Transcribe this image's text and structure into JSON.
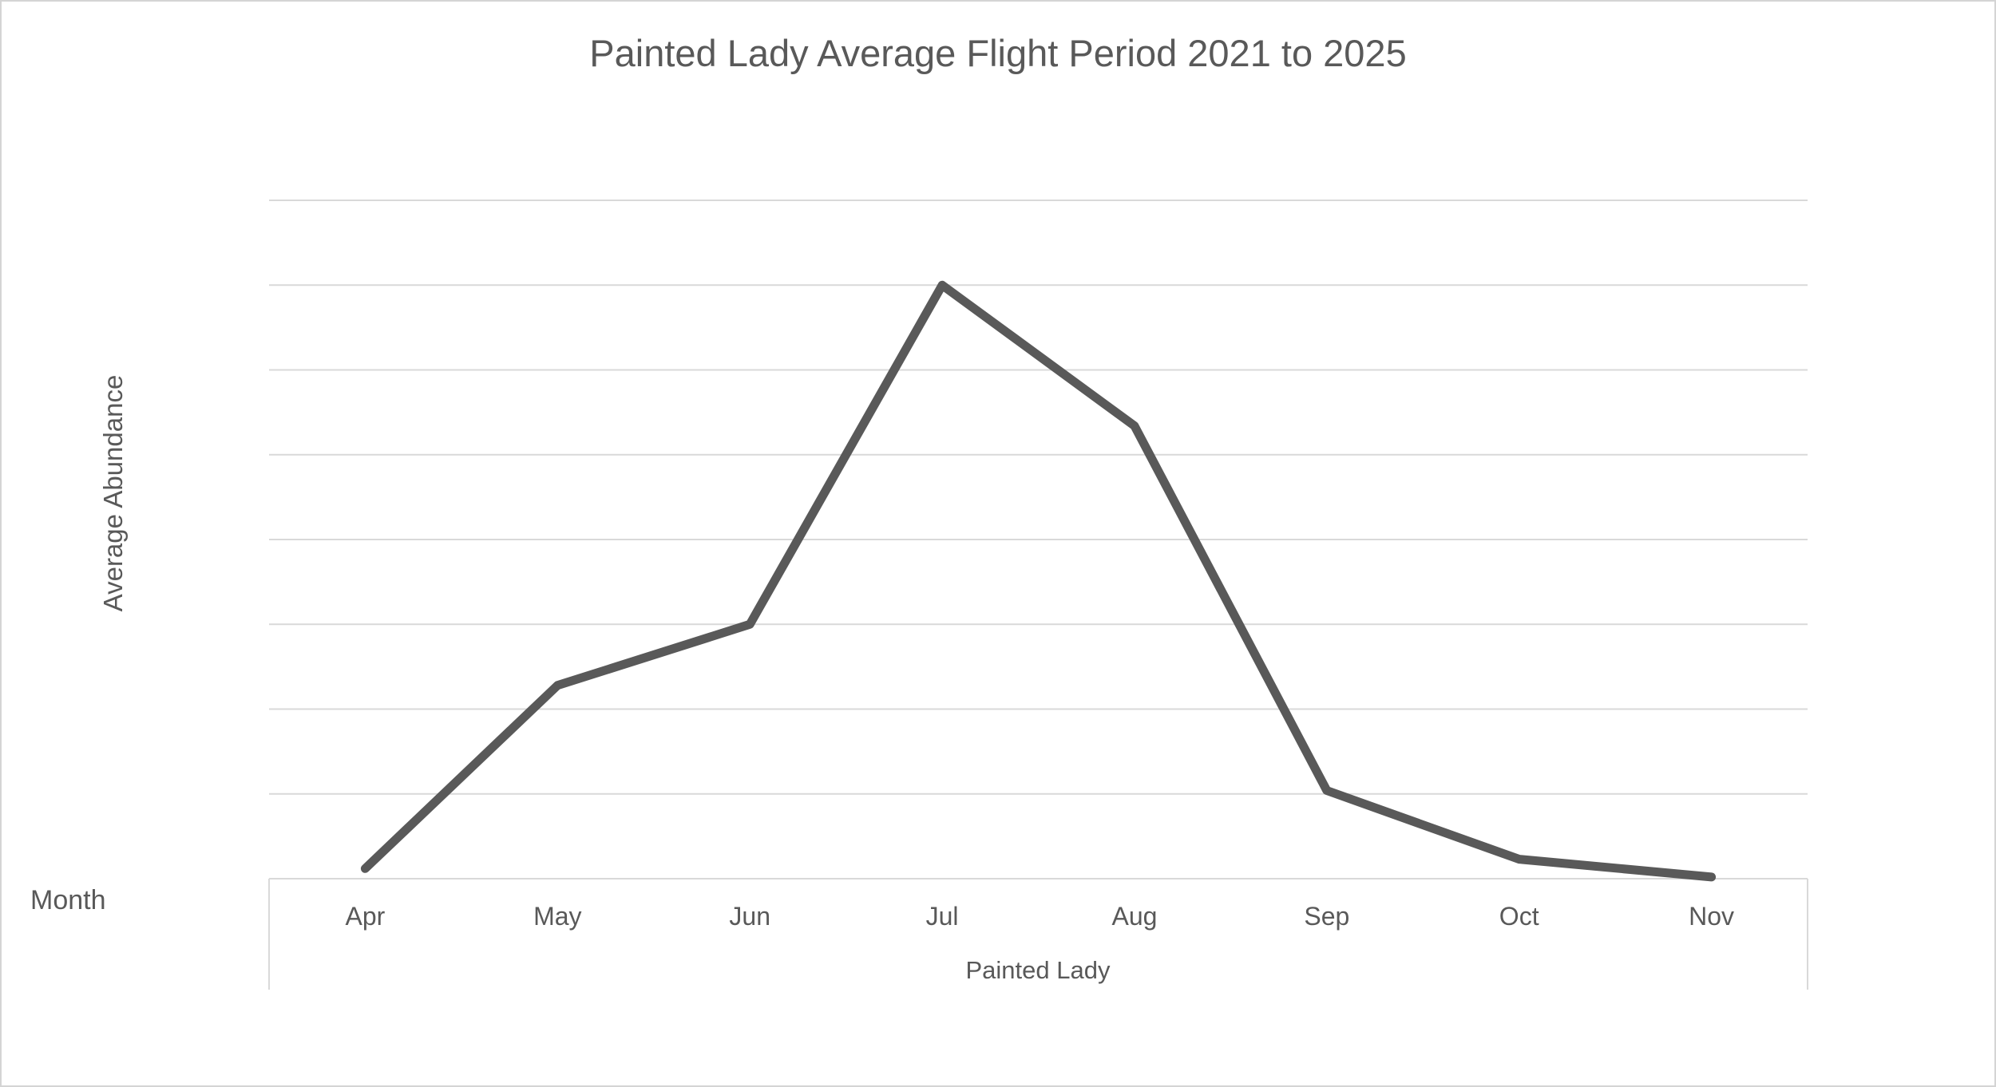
{
  "window": {
    "background_color": "#ffffff",
    "border_color": "#d4d4d4"
  },
  "chart_data": {
    "type": "line",
    "title": "Painted Lady Average Flight Period 2021 to 2025",
    "xlabel": "Month",
    "ylabel": "Average Abundance",
    "x_axis_group_label": "Painted Lady",
    "categories": [
      "Apr",
      "May",
      "Jun",
      "Jul",
      "Aug",
      "Sep",
      "Oct",
      "Nov"
    ],
    "series": [
      {
        "name": "Painted Lady",
        "values": [
          0.12,
          2.28,
          3.0,
          7.0,
          5.34,
          1.04,
          0.23,
          0.02
        ]
      }
    ],
    "ylim": [
      0,
      8
    ],
    "gridline_step": 1,
    "grid": "horizontal",
    "y_tick_labels_visible": false,
    "legend_position": "none",
    "line_color": "#595959",
    "line_width": 11,
    "gridline_color": "#d9d9d9",
    "axis_box_color": "#d9d9d9",
    "text_color": "#595959"
  }
}
